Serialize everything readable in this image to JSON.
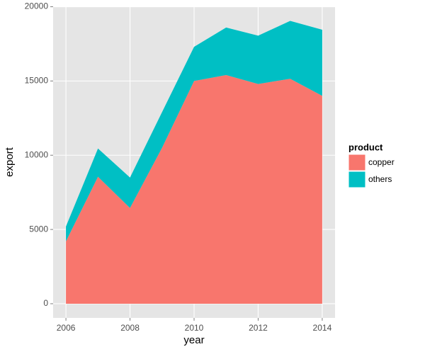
{
  "chart_data": {
    "type": "stacked-area",
    "x_label": "year",
    "y_label": "export",
    "x": [
      2006,
      2007,
      2008,
      2009,
      2010,
      2011,
      2012,
      2013,
      2014
    ],
    "series": [
      {
        "name": "copper",
        "color": "#f8766d",
        "values": [
          4200,
          8550,
          6450,
          10500,
          15000,
          15400,
          14800,
          15150,
          14000
        ]
      },
      {
        "name": "others",
        "color": "#00bfc4",
        "values": [
          1000,
          1900,
          2050,
          2400,
          2300,
          3200,
          3250,
          3900,
          4450
        ]
      }
    ],
    "xlim": [
      2005.6,
      2014.4
    ],
    "xticks": [
      2006,
      2008,
      2010,
      2012,
      2014
    ],
    "ylim": [
      -955,
      20025
    ],
    "yticks": [
      0,
      5000,
      10000,
      15000,
      20000
    ],
    "grid": true,
    "legend_title": "product",
    "legend_position": "right"
  }
}
